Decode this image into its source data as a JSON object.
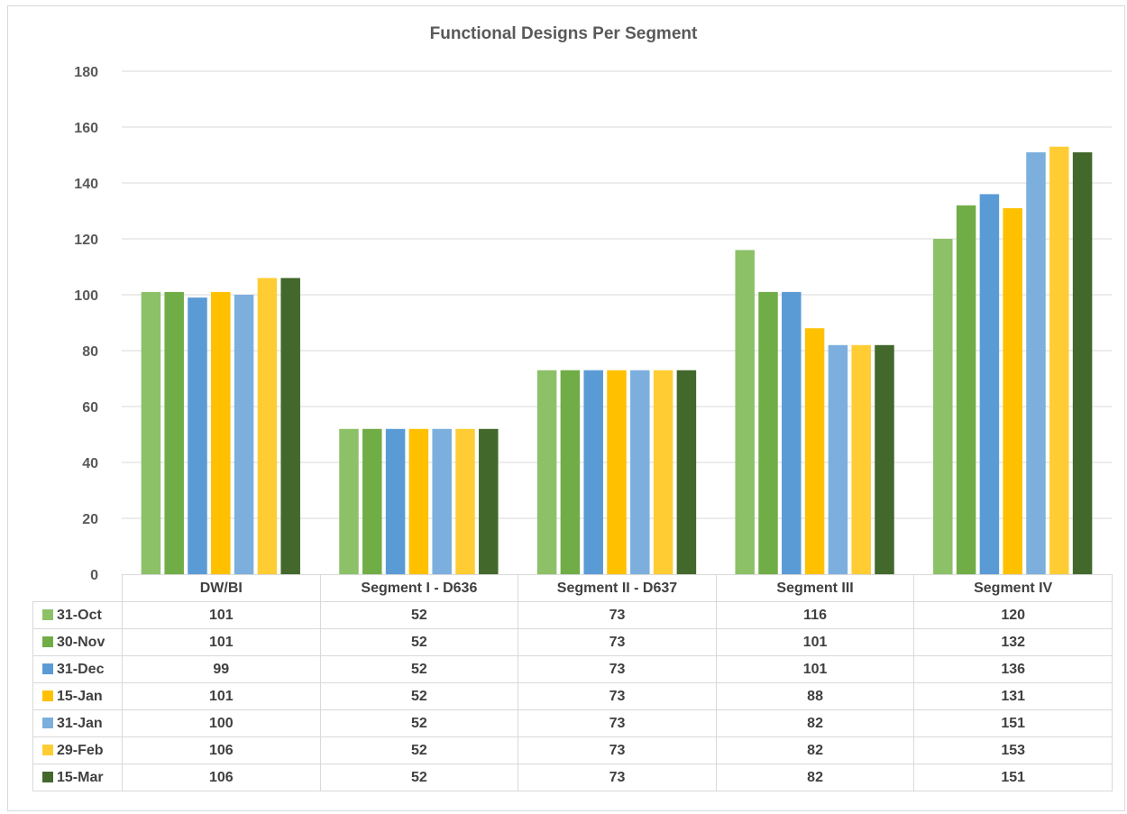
{
  "chart_data": {
    "type": "bar",
    "title": "Functional Designs Per Segment",
    "xlabel": "",
    "ylabel": "",
    "ylim": [
      0,
      180
    ],
    "yticks": [
      0,
      20,
      40,
      60,
      80,
      100,
      120,
      140,
      160,
      180
    ],
    "grid": true,
    "legend_placement": "data-table",
    "categories": [
      "DW/BI",
      "Segment I - D636",
      "Segment II - D637",
      "Segment III",
      "Segment IV"
    ],
    "series": [
      {
        "name": "31-Oct",
        "color": "#8cc168",
        "values": [
          101,
          52,
          73,
          116,
          120
        ]
      },
      {
        "name": "30-Nov",
        "color": "#70ad47",
        "values": [
          101,
          52,
          73,
          101,
          132
        ]
      },
      {
        "name": "31-Dec",
        "color": "#5b9bd5",
        "values": [
          99,
          52,
          73,
          101,
          136
        ]
      },
      {
        "name": "15-Jan",
        "color": "#ffc000",
        "values": [
          101,
          52,
          73,
          88,
          131
        ]
      },
      {
        "name": "31-Jan",
        "color": "#7cafdd",
        "values": [
          100,
          52,
          73,
          82,
          151
        ]
      },
      {
        "name": "29-Feb",
        "color": "#ffcd33",
        "values": [
          106,
          52,
          73,
          82,
          153
        ]
      },
      {
        "name": "15-Mar",
        "color": "#43682b",
        "values": [
          106,
          52,
          73,
          82,
          151
        ]
      }
    ]
  }
}
